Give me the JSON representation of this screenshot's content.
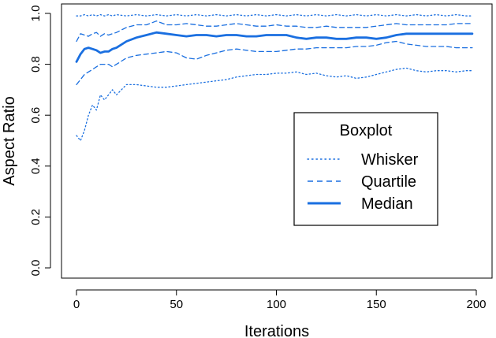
{
  "chart_data": {
    "type": "line",
    "title": "",
    "xlabel": "Iterations",
    "ylabel": "Aspect Ratio",
    "xlim": [
      0,
      200
    ],
    "ylim": [
      0,
      1
    ],
    "x_ticks": [
      "0",
      "50",
      "100",
      "150",
      "200"
    ],
    "y_ticks": [
      "0.0",
      "0.2",
      "0.4",
      "0.6",
      "0.8",
      "1.0"
    ],
    "grid": false,
    "legend": {
      "title": "Boxplot",
      "position": "right"
    },
    "series_color": "#1a6fe0",
    "x": [
      0,
      2,
      4,
      6,
      8,
      10,
      12,
      14,
      16,
      18,
      20,
      25,
      30,
      35,
      40,
      45,
      50,
      55,
      60,
      65,
      70,
      75,
      80,
      85,
      90,
      95,
      100,
      105,
      110,
      115,
      120,
      125,
      130,
      135,
      140,
      145,
      150,
      155,
      160,
      165,
      170,
      175,
      180,
      185,
      190,
      195,
      198
    ],
    "series": [
      {
        "name": "Whisker",
        "style": "dotted",
        "values": [
          0.99,
          0.99,
          0.995,
          0.99,
          0.995,
          0.99,
          0.995,
          0.99,
          0.995,
          0.99,
          0.995,
          0.99,
          0.995,
          0.99,
          0.995,
          0.99,
          0.995,
          0.99,
          0.995,
          0.99,
          0.995,
          0.99,
          0.995,
          0.99,
          0.995,
          0.99,
          0.995,
          0.99,
          0.995,
          0.99,
          0.995,
          0.99,
          0.995,
          0.99,
          0.995,
          0.99,
          0.995,
          0.99,
          0.995,
          0.99,
          0.995,
          0.99,
          0.995,
          0.99,
          0.995,
          0.99,
          0.99
        ]
      },
      {
        "name": "",
        "style": "dotted",
        "values": [
          0.52,
          0.5,
          0.54,
          0.6,
          0.64,
          0.62,
          0.68,
          0.66,
          0.68,
          0.7,
          0.68,
          0.72,
          0.72,
          0.715,
          0.71,
          0.71,
          0.715,
          0.72,
          0.725,
          0.73,
          0.735,
          0.74,
          0.75,
          0.755,
          0.76,
          0.76,
          0.765,
          0.765,
          0.77,
          0.76,
          0.765,
          0.755,
          0.75,
          0.755,
          0.745,
          0.75,
          0.76,
          0.77,
          0.78,
          0.785,
          0.775,
          0.77,
          0.775,
          0.775,
          0.77,
          0.775,
          0.775
        ]
      },
      {
        "name": "Quartile",
        "style": "dashed",
        "values": [
          0.89,
          0.92,
          0.915,
          0.91,
          0.92,
          0.925,
          0.91,
          0.92,
          0.915,
          0.92,
          0.925,
          0.945,
          0.955,
          0.955,
          0.97,
          0.955,
          0.955,
          0.96,
          0.955,
          0.95,
          0.95,
          0.955,
          0.96,
          0.955,
          0.95,
          0.95,
          0.955,
          0.95,
          0.95,
          0.945,
          0.945,
          0.95,
          0.945,
          0.945,
          0.945,
          0.945,
          0.95,
          0.955,
          0.96,
          0.955,
          0.955,
          0.955,
          0.955,
          0.955,
          0.96,
          0.96,
          0.96
        ]
      },
      {
        "name": "",
        "style": "dashed",
        "values": [
          0.72,
          0.74,
          0.76,
          0.77,
          0.78,
          0.79,
          0.8,
          0.8,
          0.8,
          0.79,
          0.8,
          0.825,
          0.835,
          0.84,
          0.845,
          0.85,
          0.845,
          0.825,
          0.82,
          0.835,
          0.845,
          0.855,
          0.86,
          0.855,
          0.85,
          0.85,
          0.85,
          0.855,
          0.86,
          0.86,
          0.865,
          0.865,
          0.865,
          0.865,
          0.87,
          0.87,
          0.875,
          0.885,
          0.89,
          0.88,
          0.875,
          0.87,
          0.87,
          0.87,
          0.865,
          0.865,
          0.865
        ]
      },
      {
        "name": "Median",
        "style": "solid",
        "values": [
          0.81,
          0.84,
          0.86,
          0.865,
          0.86,
          0.855,
          0.845,
          0.85,
          0.85,
          0.86,
          0.865,
          0.89,
          0.905,
          0.915,
          0.925,
          0.92,
          0.915,
          0.91,
          0.915,
          0.915,
          0.91,
          0.915,
          0.915,
          0.91,
          0.91,
          0.915,
          0.915,
          0.915,
          0.905,
          0.9,
          0.905,
          0.905,
          0.9,
          0.9,
          0.905,
          0.905,
          0.9,
          0.905,
          0.915,
          0.92,
          0.92,
          0.92,
          0.92,
          0.92,
          0.92,
          0.92,
          0.92
        ]
      }
    ]
  }
}
